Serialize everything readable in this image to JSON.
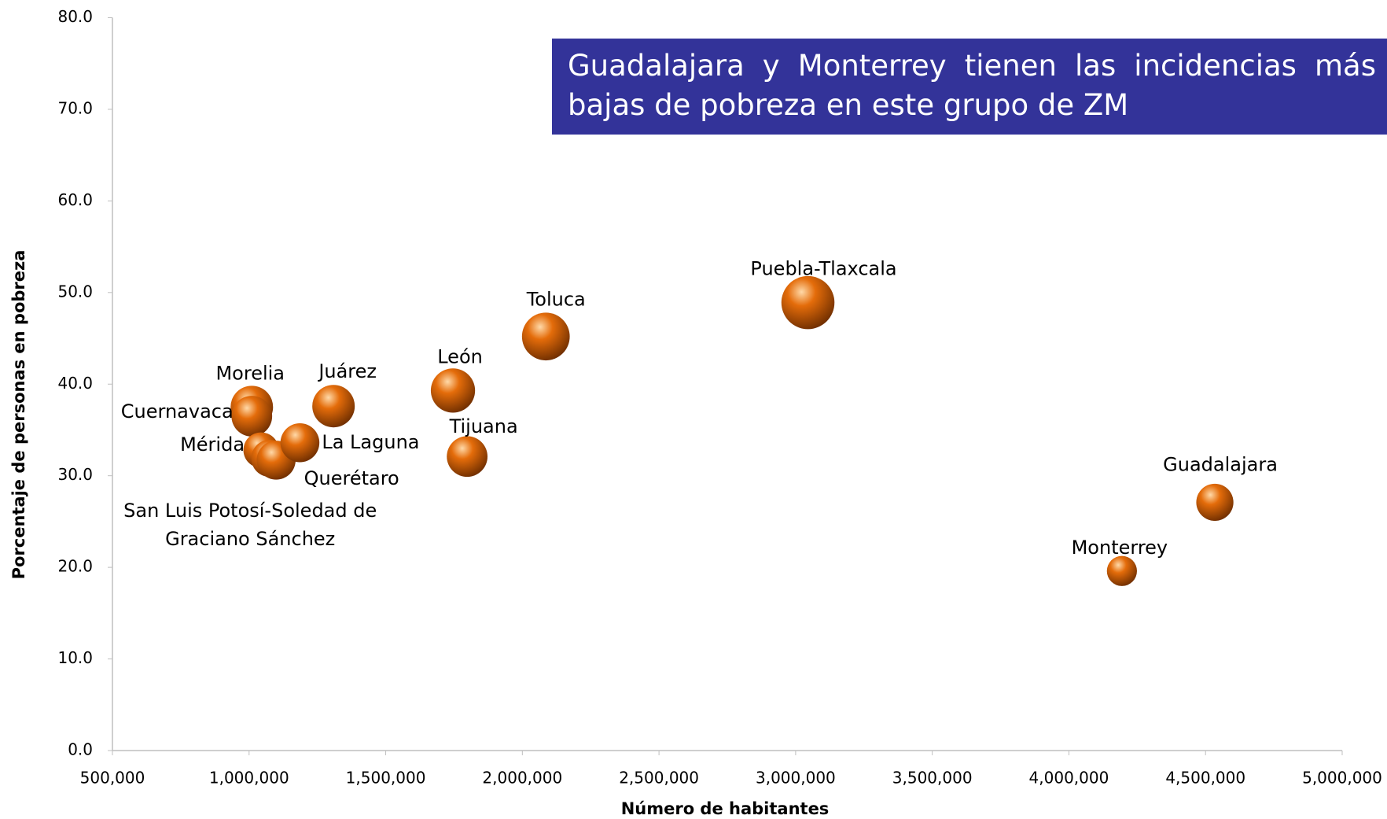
{
  "chart_data": {
    "type": "bubble",
    "annotation": "Guadalajara y Monterrey tienen las incidencias más bajas de pobreza en este grupo de ZM",
    "x_label": "Número de habitantes",
    "y_label": "Porcentaje de personas en pobreza",
    "labels": [
      "Morelia",
      "Cuernavaca",
      "Mérida",
      "San Luis Potosí-Soledad de Graciano Sánchez",
      "Querétaro",
      "La Laguna",
      "Juárez",
      "León",
      "Tijuana",
      "Toluca",
      "Puebla-Tlaxcala",
      "Guadalajara",
      "Monterrey"
    ],
    "x": [
      1010000,
      1010000,
      1044000,
      1076000,
      1099000,
      1186000,
      1309000,
      1746000,
      1798000,
      2086000,
      3045000,
      4534000,
      4194000
    ],
    "values": [
      37.5,
      36.5,
      32.8,
      31.9,
      31.7,
      33.6,
      37.6,
      39.3,
      32.1,
      45.2,
      48.9,
      27.1,
      19.6
    ],
    "sizes": [
      576,
      529,
      400,
      441,
      484,
      484,
      576,
      625,
      529,
      729,
      900,
      441,
      289
    ],
    "color": "#e46c0a",
    "xlim": [
      500000,
      5000000
    ],
    "ylim": [
      0,
      80
    ],
    "xticks": [
      {
        "value": 500000,
        "label": "500,000"
      },
      {
        "value": 1000000,
        "label": "1,000,000"
      },
      {
        "value": 1500000,
        "label": "1,500,000"
      },
      {
        "value": 2000000,
        "label": "2,000,000"
      },
      {
        "value": 2500000,
        "label": "2,500,000"
      },
      {
        "value": 3000000,
        "label": "3,000,000"
      },
      {
        "value": 3500000,
        "label": "3,500,000"
      },
      {
        "value": 4000000,
        "label": "4,000,000"
      },
      {
        "value": 4500000,
        "label": "4,500,000"
      },
      {
        "value": 5000000,
        "label": "5,000,000"
      }
    ],
    "yticks": [
      {
        "value": 0,
        "label": "0.0"
      },
      {
        "value": 10,
        "label": "10.0"
      },
      {
        "value": 20,
        "label": "20.0"
      },
      {
        "value": 30,
        "label": "30.0"
      },
      {
        "value": 40,
        "label": "40.0"
      },
      {
        "value": 50,
        "label": "50.0"
      },
      {
        "value": 60,
        "label": "60.0"
      },
      {
        "value": 70,
        "label": "70.0"
      },
      {
        "value": 80,
        "label": "80.0"
      }
    ]
  }
}
